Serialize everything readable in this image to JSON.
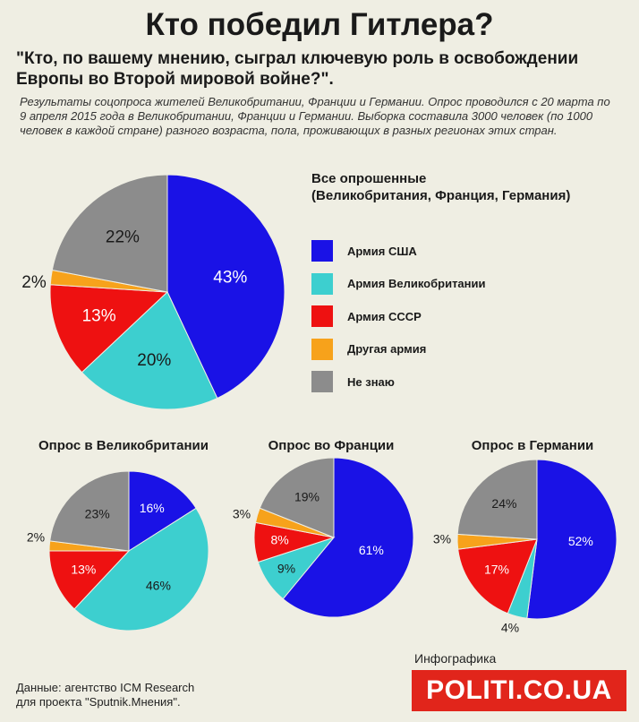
{
  "title": "Кто победил Гитлера?",
  "question": "\"Кто, по вашему мнению, сыграл ключевую роль в освобождении Европы во Второй мировой войне?\".",
  "description": "Результаты соцопроса жителей Великобритании, Франции и Германии. Опрос проводился с 20 марта по 9 апреля 2015 года в Великобритании, Франции и Германии. Выборка составила 3000 человек (по 1000 человек в каждой стране) разного возраста, пола, проживающих в разных регионах этих стран.",
  "legend_title_line1": "Все опрошенные",
  "legend_title_line2": "(Великобритания, Франция, Германия)",
  "legend": [
    {
      "label": "Армия США",
      "color": "#1a12e6"
    },
    {
      "label": "Армия Великобритании",
      "color": "#3dcfcf"
    },
    {
      "label": "Армия СССР",
      "color": "#ee1111"
    },
    {
      "label": "Другая армия",
      "color": "#f7a21b"
    },
    {
      "label": "Не знаю",
      "color": "#8c8c8c"
    }
  ],
  "source_line1": "Данные: агентство ICM Research",
  "source_line2": "для проекта \"Sputnik.Мнения\".",
  "infographic_label": "Инфографика",
  "brand": "POLITI.CO.UA",
  "chart_data": [
    {
      "type": "pie",
      "title": "Все опрошенные (Великобритания, Франция, Германия)",
      "categories": [
        "Армия США",
        "Армия Великобритании",
        "Армия СССР",
        "Другая армия",
        "Не знаю"
      ],
      "values": [
        43,
        20,
        13,
        2,
        22
      ],
      "labels": [
        "43%",
        "20%",
        "13%",
        "2%",
        "22%"
      ]
    },
    {
      "type": "pie",
      "title": "Опрос в Великобритании",
      "categories": [
        "Армия США",
        "Армия Великобритании",
        "Армия СССР",
        "Другая армия",
        "Не знаю"
      ],
      "values": [
        16,
        46,
        13,
        2,
        23
      ],
      "labels": [
        "16%",
        "46%",
        "13%",
        "2%",
        "23%"
      ]
    },
    {
      "type": "pie",
      "title": "Опрос во Франции",
      "categories": [
        "Армия США",
        "Армия Великобритании",
        "Армия СССР",
        "Другая армия",
        "Не знаю"
      ],
      "values": [
        61,
        9,
        8,
        3,
        19
      ],
      "labels": [
        "61%",
        "9%",
        "8%",
        "3%",
        "19%"
      ]
    },
    {
      "type": "pie",
      "title": "Опрос в Германии",
      "categories": [
        "Армия США",
        "Армия Великобритании",
        "Армия СССР",
        "Другая армия",
        "Не знаю"
      ],
      "values": [
        52,
        4,
        17,
        3,
        24
      ],
      "labels": [
        "52%",
        "4%",
        "17%",
        "3%",
        "24%"
      ]
    }
  ]
}
